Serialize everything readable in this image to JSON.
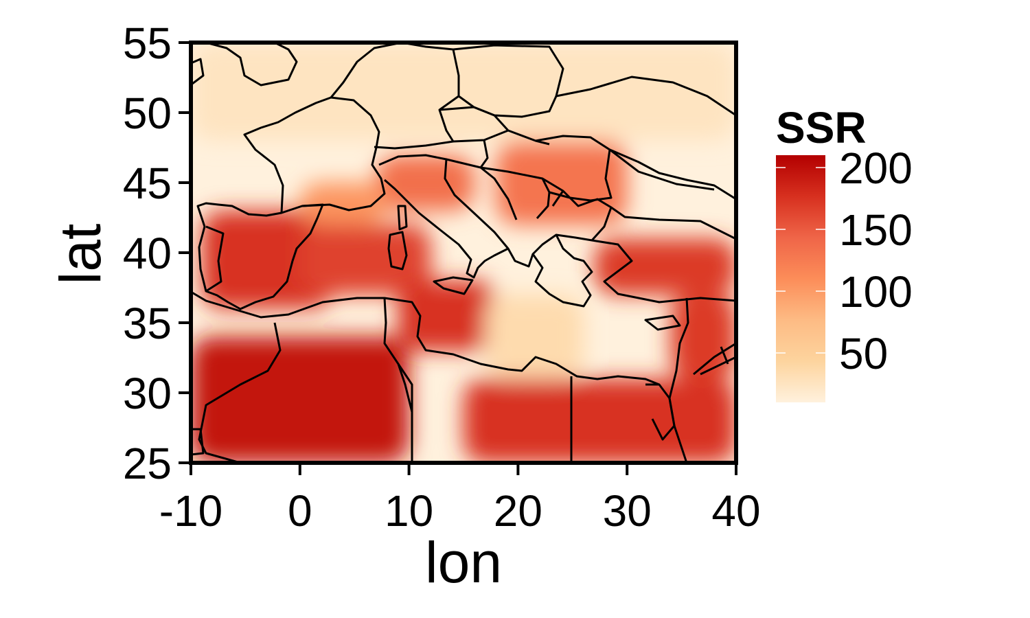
{
  "chart_data": {
    "type": "heatmap",
    "title": "",
    "xlabel": "lon",
    "ylabel": "lat",
    "xlim": [
      -10,
      40
    ],
    "ylim": [
      25,
      55
    ],
    "x_ticks": [
      -10,
      0,
      10,
      20,
      30,
      40
    ],
    "x_tick_labels": [
      "-10",
      "0",
      "10",
      "20",
      "30",
      "40"
    ],
    "y_ticks": [
      25,
      30,
      35,
      40,
      45,
      50,
      55
    ],
    "y_tick_labels": [
      "25",
      "30",
      "35",
      "40",
      "45",
      "50",
      "55"
    ],
    "grid": false,
    "colorbar": {
      "title": "SSR",
      "ticks": [
        50,
        100,
        150,
        200
      ],
      "tick_labels": [
        "50",
        "100",
        "150",
        "200"
      ],
      "range": [
        10,
        210
      ],
      "colors": [
        "#fff1dd",
        "#fdd49e",
        "#fdbb84",
        "#fc8d59",
        "#ef6548",
        "#d7301f",
        "#b30000"
      ],
      "position": "right"
    },
    "overlay": "country borders and coastlines (black)",
    "field_regions": [
      {
        "region": "northern Sahara (Algeria/Morocco)",
        "lon": [
          -10,
          10
        ],
        "lat": [
          25,
          34
        ],
        "ssr": 195
      },
      {
        "region": "Libya / Egypt desert",
        "lon": [
          15,
          40
        ],
        "lat": [
          25,
          31
        ],
        "ssr": 175
      },
      {
        "region": "Iberia",
        "lon": [
          -9,
          3
        ],
        "lat": [
          36,
          43
        ],
        "ssr": 175
      },
      {
        "region": "Western Mediterranean sea",
        "lon": [
          0,
          12
        ],
        "lat": [
          37,
          42
        ],
        "ssr": 165
      },
      {
        "region": "Tunisia / central Mediterranean",
        "lon": [
          9,
          18
        ],
        "lat": [
          33,
          38
        ],
        "ssr": 175
      },
      {
        "region": "Turkey / Anatolia",
        "lon": [
          27,
          40
        ],
        "lat": [
          37,
          41
        ],
        "ssr": 170
      },
      {
        "region": "Middle East",
        "lon": [
          34,
          40
        ],
        "lat": [
          31,
          37
        ],
        "ssr": 170
      },
      {
        "region": "Northern Italy / Alps",
        "lon": [
          7,
          16
        ],
        "lat": [
          43,
          47
        ],
        "ssr": 135
      },
      {
        "region": "Balkans / Romania",
        "lon": [
          18,
          30
        ],
        "lat": [
          42,
          48
        ],
        "ssr": 130
      },
      {
        "region": "Southern France",
        "lon": [
          0,
          8
        ],
        "lat": [
          42,
          45
        ],
        "ssr": 105
      },
      {
        "region": "Ionian / eastern Mediterranean sea (cloudy)",
        "lon": [
          17,
          26
        ],
        "lat": [
          31,
          37
        ],
        "ssr": 35
      },
      {
        "region": "Northern Europe",
        "lon": [
          -10,
          40
        ],
        "lat": [
          48,
          55
        ],
        "ssr": 25
      }
    ]
  }
}
